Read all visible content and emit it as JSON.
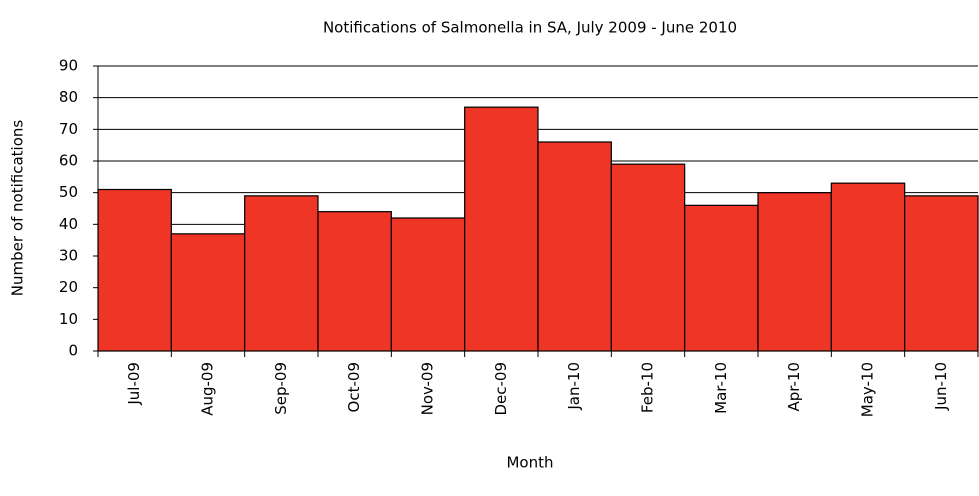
{
  "chart_data": {
    "type": "bar",
    "title": "Notifications of Salmonella in SA, July 2009 - June 2010",
    "x_label": "Month",
    "y_label": "Number of notifications",
    "categories": [
      "Jul-09",
      "Aug-09",
      "Sep-09",
      "Oct-09",
      "Nov-09",
      "Dec-09",
      "Jan-10",
      "Feb-10",
      "Mar-10",
      "Apr-10",
      "May-10",
      "Jun-10"
    ],
    "values": [
      51,
      37,
      49,
      44,
      42,
      77,
      66,
      59,
      46,
      50,
      53,
      49
    ],
    "color": "#ee3526",
    "ylim": [
      0,
      90
    ],
    "yticks": [
      0,
      10,
      20,
      30,
      40,
      50,
      60,
      70,
      80,
      90
    ],
    "grid": true
  }
}
